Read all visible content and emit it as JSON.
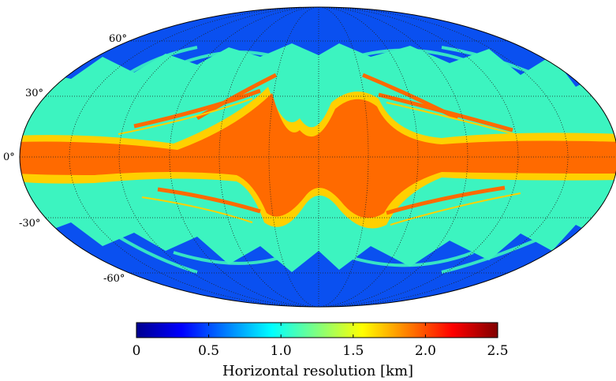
{
  "map": {
    "projection": "mollweide",
    "field": "horizontal resolution",
    "graticule": {
      "latitudes": [
        60,
        30,
        0,
        -30,
        -60
      ],
      "longitude_step": 30,
      "style": "dotted"
    },
    "lat_labels": [
      "60°",
      "30°",
      "0°",
      "-30°",
      "-60°"
    ]
  },
  "colorbar": {
    "colormap": "jet",
    "min": 0,
    "max": 2.5,
    "ticks": [
      "0",
      "0.5",
      "1.0",
      "1.5",
      "2.0",
      "2.5"
    ],
    "title": "Horizontal resolution [km]"
  },
  "colors": {
    "polar_deep_blue": "#0a50f0",
    "mid_cyan": "#3cf4c0",
    "equatorial_orange": "#ff6a00",
    "transition_yellow": "#ffd000",
    "outline": "#000000"
  }
}
